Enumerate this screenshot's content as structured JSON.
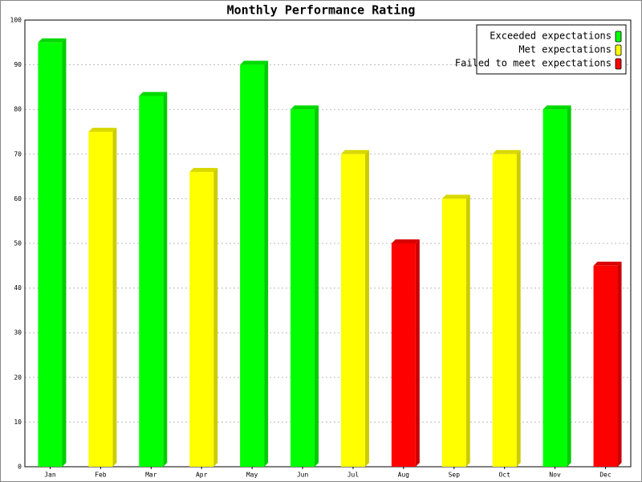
{
  "chart_data": {
    "type": "bar",
    "title": "Monthly Performance Rating",
    "categories": [
      "Jan",
      "Feb",
      "Mar",
      "Apr",
      "May",
      "Jun",
      "Jul",
      "Aug",
      "Sep",
      "Oct",
      "Nov",
      "Dec"
    ],
    "series": [
      {
        "name": "Exceeded expectations",
        "color": "#00ff00",
        "values": [
          95,
          null,
          83,
          null,
          90,
          80,
          null,
          null,
          null,
          null,
          80,
          null
        ]
      },
      {
        "name": "Met expectations",
        "color": "#ffff00",
        "values": [
          null,
          75,
          null,
          66,
          null,
          null,
          70,
          null,
          60,
          70,
          null,
          null
        ]
      },
      {
        "name": "Failed to meet expectations",
        "color": "#ff0000",
        "values": [
          null,
          null,
          null,
          null,
          null,
          null,
          null,
          50,
          null,
          null,
          null,
          45
        ]
      }
    ],
    "ylim": [
      0,
      100
    ],
    "yticks": [
      0,
      10,
      20,
      30,
      40,
      50,
      60,
      70,
      80,
      90,
      100
    ],
    "grid": true,
    "legend": "top-right"
  }
}
